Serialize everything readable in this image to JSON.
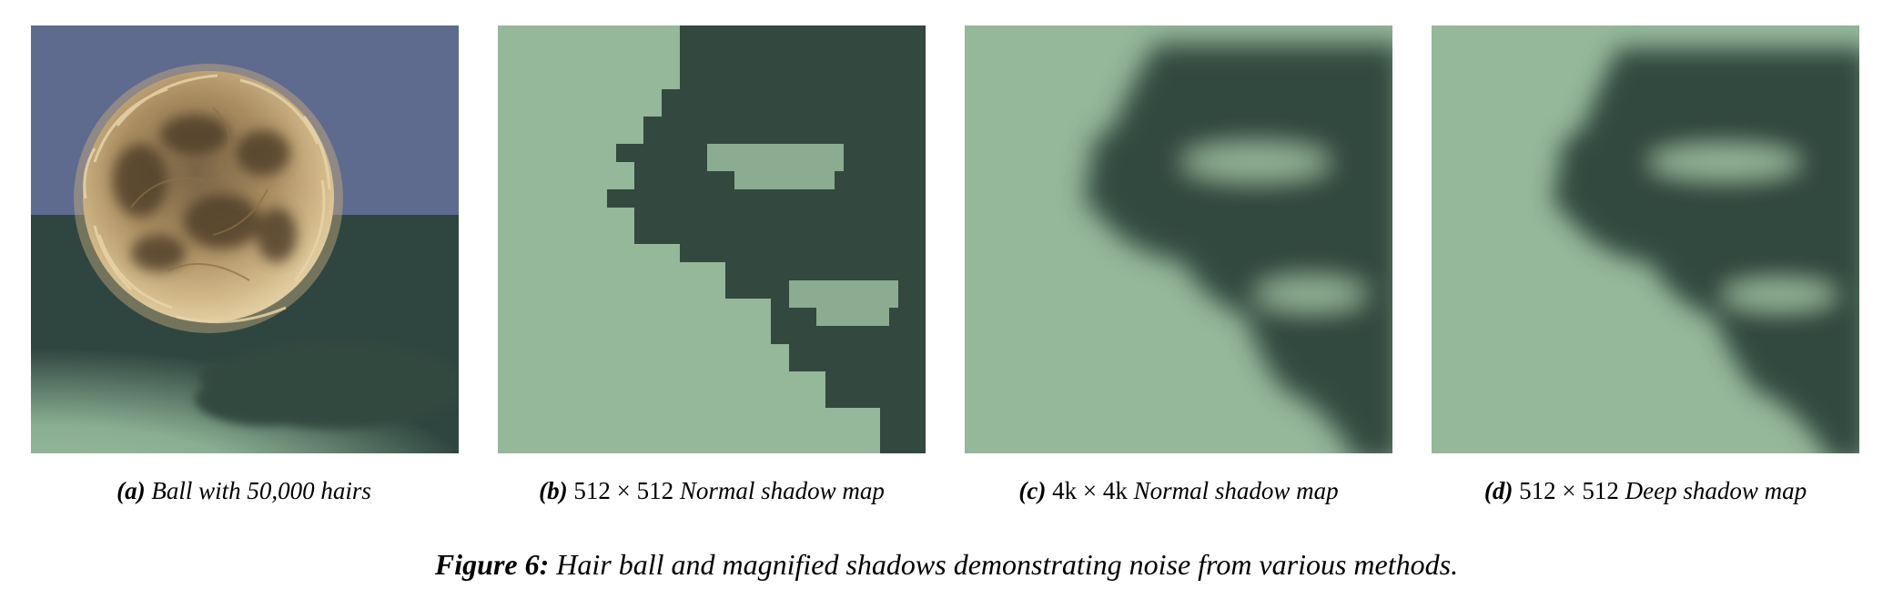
{
  "colors": {
    "sky": "#5e6a8e",
    "floor_lit": "#95b79a",
    "floor_dark": "#2f4640",
    "shadow": "#33483f",
    "hair": "#c4a97a"
  },
  "panels": [
    {
      "id": "a",
      "label": "(a)",
      "math": "",
      "text": "Ball with 50,000 hairs"
    },
    {
      "id": "b",
      "label": "(b)",
      "math": "512 × 512",
      "text": "Normal shadow map"
    },
    {
      "id": "c",
      "label": "(c)",
      "math": "4k × 4k",
      "text": "Normal shadow map"
    },
    {
      "id": "d",
      "label": "(d)",
      "math": "512 × 512",
      "text": "Deep shadow map"
    }
  ],
  "figure": {
    "label": "Figure 6:",
    "caption": "Hair ball and magnified shadows demonstrating noise from various methods."
  }
}
